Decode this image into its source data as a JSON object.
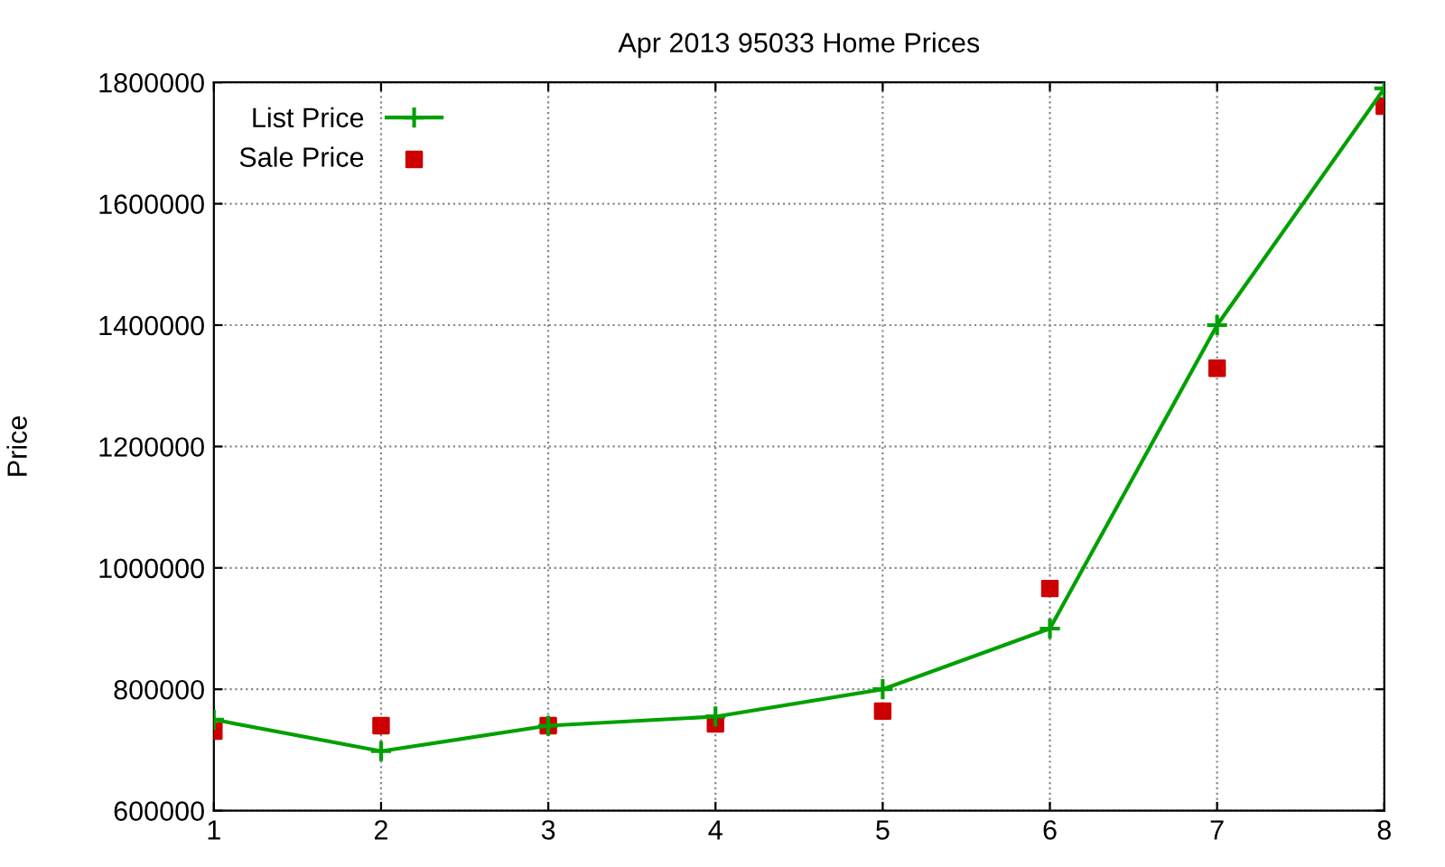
{
  "chart_data": {
    "type": "line",
    "title": "Apr 2013 95033 Home Prices",
    "ylabel": "Price",
    "x": [
      1,
      2,
      3,
      4,
      5,
      6,
      7,
      8
    ],
    "series": [
      {
        "name": "List Price",
        "color": "#00a000",
        "marker": "cross",
        "values": [
          750000,
          698000,
          740000,
          755000,
          800000,
          900000,
          1400000,
          1790000
        ]
      },
      {
        "name": "Sale Price",
        "type": "scatter",
        "color": "#cc0000",
        "marker": "square",
        "values": [
          731000,
          740000,
          740000,
          743000,
          764000,
          966000,
          1329000,
          1761000
        ]
      }
    ],
    "xlim": [
      1,
      8
    ],
    "xticks": [
      1,
      2,
      3,
      4,
      5,
      6,
      7,
      8
    ],
    "ylim": [
      600000,
      1800000
    ],
    "yticks": [
      600000,
      800000,
      1000000,
      1200000,
      1400000,
      1600000,
      1800000
    ],
    "grid": true,
    "line_style": "solid",
    "legend": "top left"
  }
}
